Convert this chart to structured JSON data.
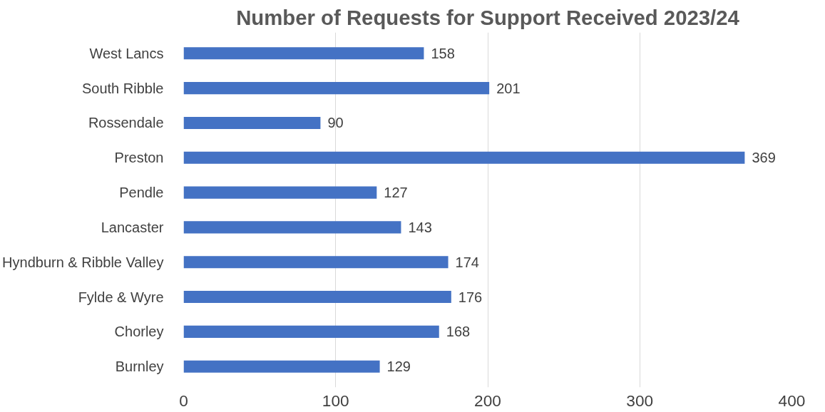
{
  "chart_data": {
    "type": "bar",
    "orientation": "horizontal",
    "title": "Number of Requests for Support Received 2023/24",
    "categories": [
      "West Lancs",
      "South Ribble",
      "Rossendale",
      "Preston",
      "Pendle",
      "Lancaster",
      "Hyndburn & Ribble Valley",
      "Fylde & Wyre",
      "Chorley",
      "Burnley"
    ],
    "values": [
      158,
      201,
      90,
      369,
      127,
      143,
      174,
      176,
      168,
      129
    ],
    "color": "#4472c4",
    "xlim": [
      0,
      400
    ],
    "xticks": [
      0,
      100,
      200,
      300,
      400
    ],
    "grid": "x",
    "data_labels": true
  }
}
